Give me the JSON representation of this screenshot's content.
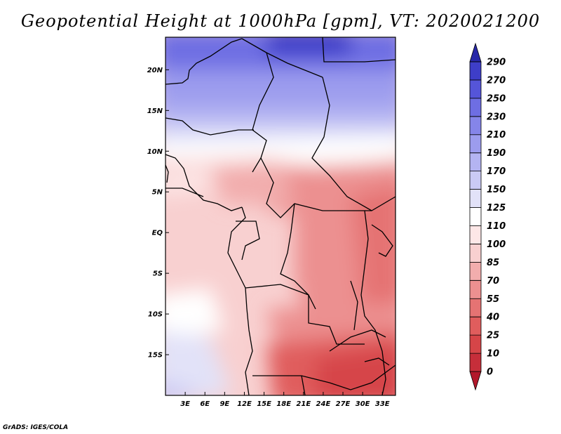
{
  "title": "Geopotential Height at 1000hPa [gpm], VT: 2020021200",
  "credit": "GrADS: IGES/COLA",
  "map": {
    "projection": "lat-lon",
    "lon_range": [
      0,
      35
    ],
    "lat_range": [
      -20,
      24
    ],
    "lat_ticks": [
      {
        "value": 20,
        "label": "20N"
      },
      {
        "value": 15,
        "label": "15N"
      },
      {
        "value": 10,
        "label": "10N"
      },
      {
        "value": 5,
        "label": "5N"
      },
      {
        "value": 0,
        "label": "EQ"
      },
      {
        "value": -5,
        "label": "5S"
      },
      {
        "value": -10,
        "label": "10S"
      },
      {
        "value": -15,
        "label": "15S"
      }
    ],
    "lon_ticks": [
      {
        "value": 3,
        "label": "3E"
      },
      {
        "value": 6,
        "label": "6E"
      },
      {
        "value": 9,
        "label": "9E"
      },
      {
        "value": 12,
        "label": "12E"
      },
      {
        "value": 15,
        "label": "15E"
      },
      {
        "value": 18,
        "label": "18E"
      },
      {
        "value": 21,
        "label": "21E"
      },
      {
        "value": 24,
        "label": "24E"
      },
      {
        "value": 27,
        "label": "27E"
      },
      {
        "value": 30,
        "label": "30E"
      },
      {
        "value": 33,
        "label": "33E"
      }
    ]
  },
  "colorbar": {
    "levels": [
      "0",
      "10",
      "25",
      "40",
      "55",
      "70",
      "85",
      "100",
      "110",
      "125",
      "150",
      "170",
      "190",
      "210",
      "230",
      "250",
      "270",
      "290"
    ],
    "colors": [
      "#b2182b",
      "#c62e3a",
      "#d64548",
      "#e05d5d",
      "#e57373",
      "#ec9090",
      "#f2adad",
      "#f8d0d0",
      "#fde7e7",
      "#ffffff",
      "#e2e2f8",
      "#cacaf5",
      "#b4b4f2",
      "#9c9cee",
      "#8585e9",
      "#6e6ee3",
      "#5555d9",
      "#3e3ec8",
      "#2727a8"
    ]
  }
}
